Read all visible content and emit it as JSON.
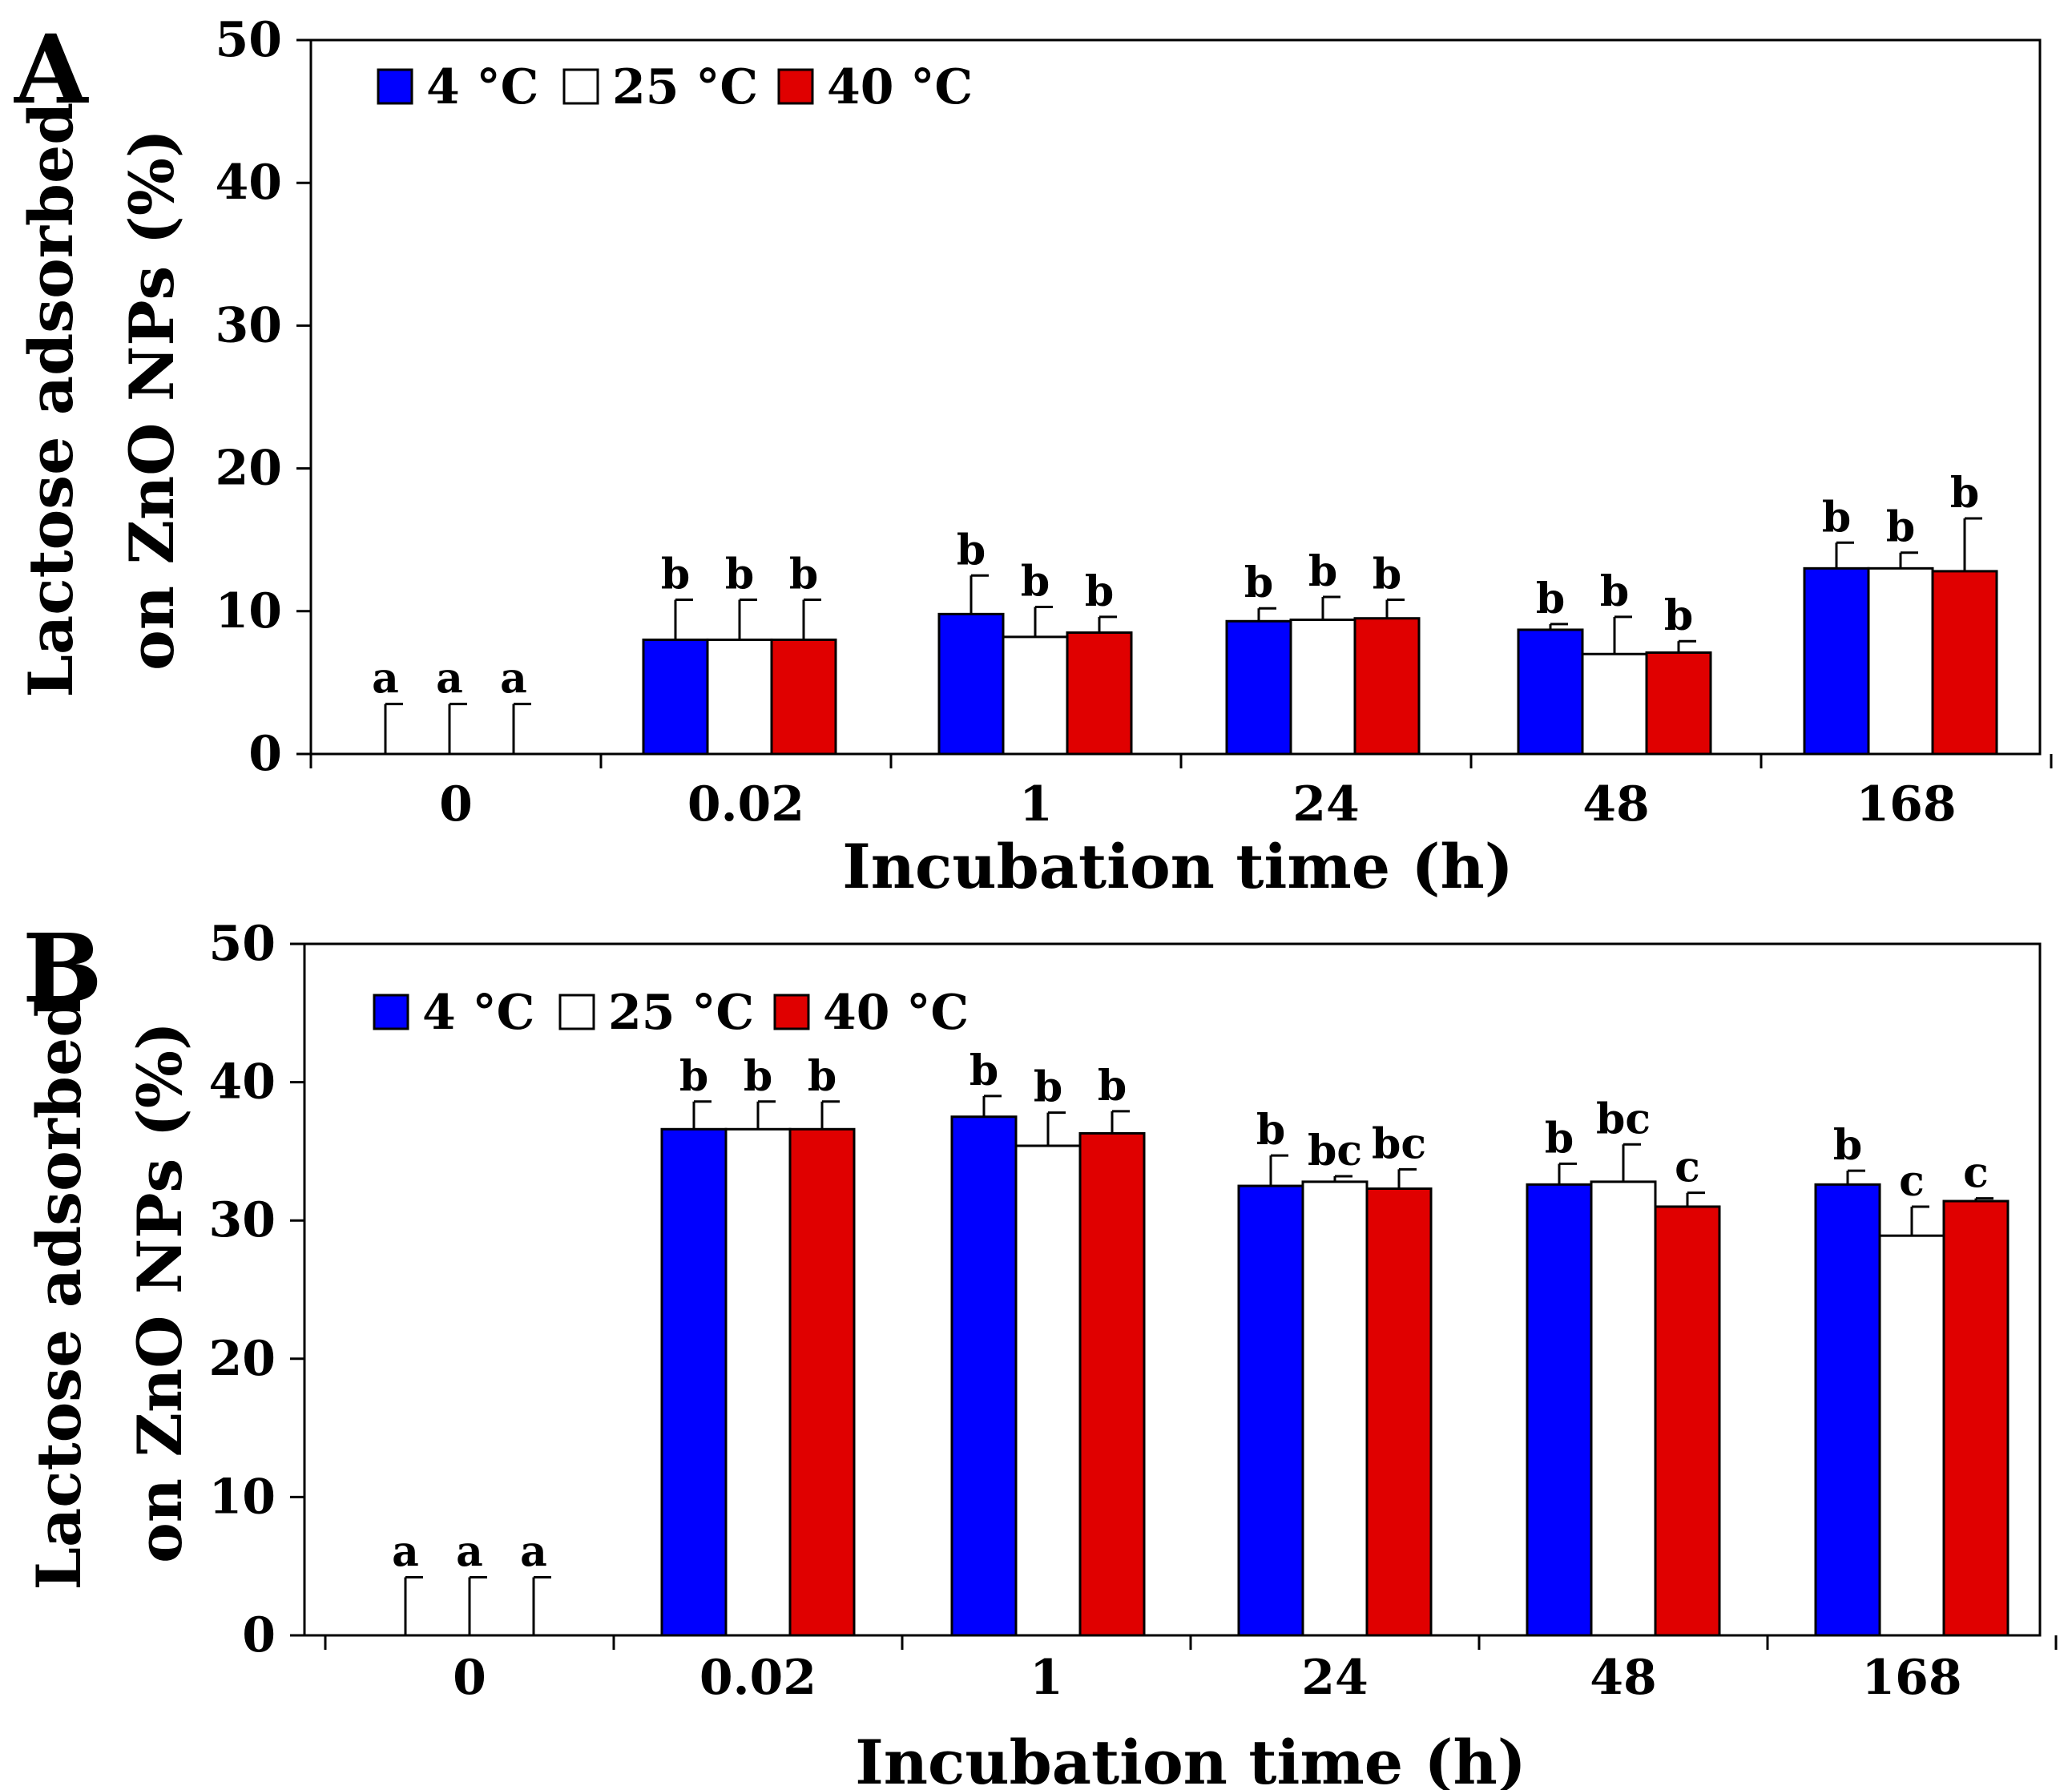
{
  "chart_data": [
    {
      "panel": "A",
      "type": "bar",
      "xlabel": "Incubation time (h)",
      "ylabel_lines": [
        "Lactose adsorbed",
        "on ZnO NPs (%)"
      ],
      "ylim": [
        0,
        50
      ],
      "yticks": [
        0,
        10,
        20,
        30,
        40,
        50
      ],
      "categories": [
        "0",
        "0.02",
        "1",
        "24",
        "48",
        "168"
      ],
      "series": [
        {
          "name": "4 °C",
          "color": "#0000ff",
          "values": [
            0,
            8.0,
            9.8,
            9.3,
            8.7,
            13.0
          ],
          "errors": [
            3.5,
            2.8,
            2.7,
            0.9,
            0.4,
            1.8
          ],
          "letters": [
            "a",
            "b",
            "b",
            "b",
            "b",
            "b"
          ]
        },
        {
          "name": "25 °C",
          "color": "#ffffff",
          "values": [
            0,
            8.0,
            8.2,
            9.4,
            7.0,
            13.0
          ],
          "errors": [
            3.5,
            2.8,
            2.1,
            1.6,
            2.6,
            1.1
          ],
          "letters": [
            "a",
            "b",
            "b",
            "b",
            "b",
            "b"
          ]
        },
        {
          "name": "40 °C",
          "color": "#e00000",
          "values": [
            0,
            8.0,
            8.5,
            9.5,
            7.1,
            12.8
          ],
          "errors": [
            3.5,
            2.8,
            1.1,
            1.3,
            0.8,
            3.7
          ],
          "letters": [
            "a",
            "b",
            "b",
            "b",
            "b",
            "b"
          ]
        }
      ]
    },
    {
      "panel": "B",
      "type": "bar",
      "xlabel": "Incubation time (h)",
      "ylabel_lines": [
        "Lactose adsorbed",
        "on ZnO NPs (%)"
      ],
      "ylim": [
        0,
        50
      ],
      "yticks": [
        0,
        10,
        20,
        30,
        40,
        50
      ],
      "categories": [
        "0",
        "0.02",
        "1",
        "24",
        "48",
        "168"
      ],
      "series": [
        {
          "name": "4 °C",
          "color": "#0000ff",
          "values": [
            0,
            36.6,
            37.5,
            32.5,
            32.6,
            32.6
          ],
          "errors": [
            4.2,
            2.0,
            1.5,
            2.2,
            1.5,
            1.0
          ],
          "letters": [
            "a",
            "b",
            "b",
            "b",
            "b",
            "b"
          ]
        },
        {
          "name": "25 °C",
          "color": "#ffffff",
          "values": [
            0,
            36.6,
            35.4,
            32.8,
            32.8,
            28.9
          ],
          "errors": [
            4.2,
            2.0,
            2.4,
            0.4,
            2.7,
            2.1
          ],
          "letters": [
            "a",
            "b",
            "b",
            "bc",
            "bc",
            "c"
          ]
        },
        {
          "name": "40 °C",
          "color": "#e00000",
          "values": [
            0,
            36.6,
            36.3,
            32.3,
            31.0,
            31.4
          ],
          "errors": [
            4.2,
            2.0,
            1.6,
            1.4,
            1.0,
            0.2
          ],
          "letters": [
            "a",
            "b",
            "b",
            "bc",
            "c",
            "c"
          ]
        }
      ]
    }
  ]
}
